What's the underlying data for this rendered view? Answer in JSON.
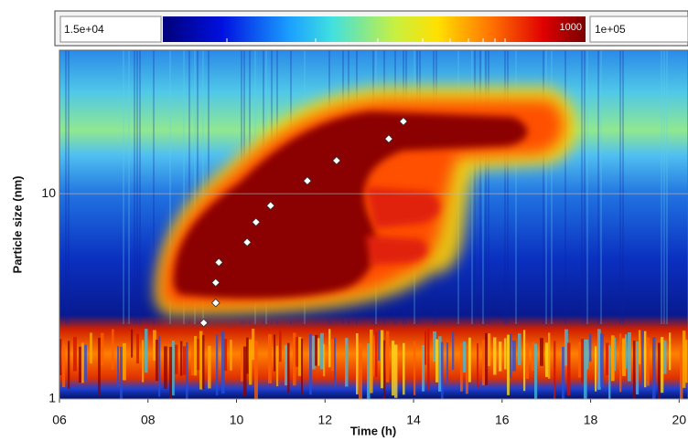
{
  "chart_data": {
    "type": "scatter",
    "x_label": "Time (h)",
    "y_label": "Particle size (nm)",
    "colorbar": {
      "min_label": "1.5e+04",
      "max_label": "1e+05",
      "inner_label": "1000"
    },
    "x": [
      9.26,
      9.53,
      9.53,
      9.6,
      10.24,
      10.44,
      10.77,
      11.6,
      12.26,
      13.44,
      13.77
    ],
    "values": [
      2.35,
      2.94,
      3.69,
      4.63,
      5.8,
      7.27,
      8.75,
      11.55,
      14.5,
      18.5,
      22.5
    ],
    "color": "#ffffff",
    "xlim": [
      6,
      20.2
    ],
    "xticks": [
      {
        "value": 6,
        "label": "06"
      },
      {
        "value": 8,
        "label": "08"
      },
      10,
      12,
      14,
      16,
      18,
      20
    ],
    "ylim": [
      1,
      50
    ],
    "yticks": [
      1,
      10
    ],
    "log_y": true,
    "grid": true
  }
}
